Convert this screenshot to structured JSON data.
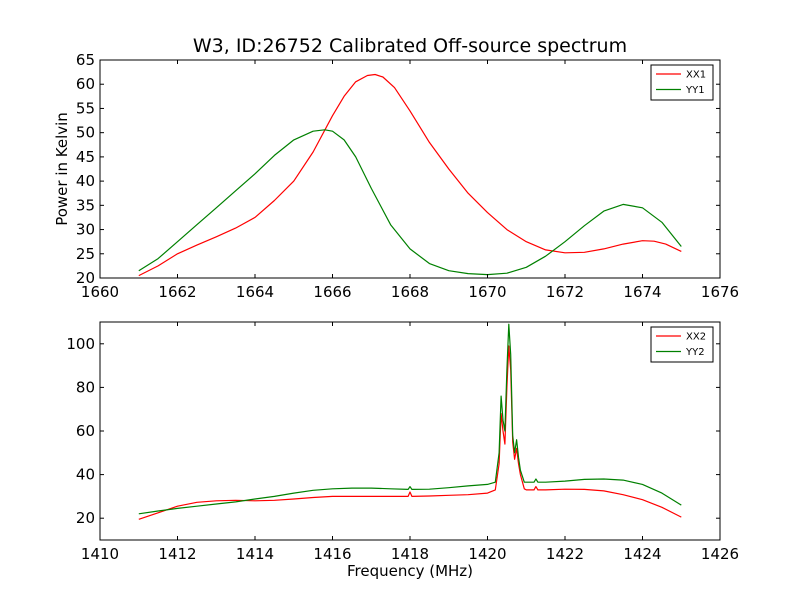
{
  "title": "W3, ID:26752 Calibrated Off-source spectrum",
  "colors": {
    "xx": "#ff0000",
    "yy": "#008000"
  },
  "chart_data": [
    {
      "type": "line",
      "title": "W3, ID:26752 Calibrated Off-source spectrum",
      "xlabel": "",
      "ylabel": "Power in Kelvin",
      "xlim": [
        1660,
        1676
      ],
      "ylim": [
        20,
        65
      ],
      "xticks": [
        1660,
        1662,
        1664,
        1666,
        1668,
        1670,
        1672,
        1674,
        1676
      ],
      "yticks": [
        20,
        25,
        30,
        35,
        40,
        45,
        50,
        55,
        60,
        65
      ],
      "grid": false,
      "legend": "top-right",
      "series": [
        {
          "name": "XX1",
          "color": "#ff0000",
          "x": [
            1661.0,
            1661.5,
            1662.0,
            1662.5,
            1663.0,
            1663.5,
            1664.0,
            1664.5,
            1665.0,
            1665.5,
            1666.0,
            1666.3,
            1666.6,
            1666.9,
            1667.1,
            1667.3,
            1667.6,
            1668.0,
            1668.5,
            1669.0,
            1669.5,
            1670.0,
            1670.5,
            1671.0,
            1671.5,
            1672.0,
            1672.5,
            1673.0,
            1673.5,
            1674.0,
            1674.3,
            1674.6,
            1675.0
          ],
          "y": [
            20.5,
            22.5,
            25.0,
            26.8,
            28.5,
            30.3,
            32.5,
            36.0,
            40.0,
            46.0,
            53.5,
            57.5,
            60.5,
            61.8,
            62.0,
            61.5,
            59.3,
            54.5,
            48.0,
            42.5,
            37.5,
            33.5,
            30.0,
            27.5,
            25.8,
            25.2,
            25.3,
            26.0,
            27.0,
            27.7,
            27.6,
            27.0,
            25.5
          ]
        },
        {
          "name": "YY1",
          "color": "#008000",
          "x": [
            1661.0,
            1661.5,
            1662.0,
            1662.5,
            1663.0,
            1663.5,
            1664.0,
            1664.5,
            1665.0,
            1665.5,
            1665.8,
            1666.0,
            1666.3,
            1666.6,
            1667.0,
            1667.5,
            1668.0,
            1668.5,
            1669.0,
            1669.5,
            1670.0,
            1670.5,
            1671.0,
            1671.5,
            1672.0,
            1672.5,
            1673.0,
            1673.5,
            1674.0,
            1674.5,
            1675.0
          ],
          "y": [
            21.5,
            24.0,
            27.5,
            31.0,
            34.5,
            38.0,
            41.5,
            45.3,
            48.5,
            50.3,
            50.6,
            50.3,
            48.5,
            45.0,
            38.5,
            31.0,
            26.0,
            23.0,
            21.5,
            20.9,
            20.7,
            21.0,
            22.2,
            24.5,
            27.5,
            30.8,
            33.8,
            35.2,
            34.5,
            31.5,
            26.5
          ]
        }
      ]
    },
    {
      "type": "line",
      "title": "",
      "xlabel": "Frequency (MHz)",
      "ylabel": "",
      "xlim": [
        1410,
        1426
      ],
      "ylim": [
        10,
        110
      ],
      "xticks": [
        1410,
        1412,
        1414,
        1416,
        1418,
        1420,
        1422,
        1424,
        1426
      ],
      "yticks": [
        20,
        40,
        60,
        80,
        100
      ],
      "grid": false,
      "legend": "top-right",
      "series": [
        {
          "name": "XX2",
          "color": "#ff0000",
          "x": [
            1411.0,
            1411.5,
            1412.0,
            1412.5,
            1413.0,
            1413.5,
            1414.0,
            1414.5,
            1415.0,
            1415.5,
            1416.0,
            1416.5,
            1417.0,
            1417.5,
            1417.95,
            1418.0,
            1418.05,
            1418.5,
            1419.0,
            1419.5,
            1420.0,
            1420.2,
            1420.3,
            1420.35,
            1420.4,
            1420.45,
            1420.5,
            1420.55,
            1420.6,
            1420.65,
            1420.7,
            1420.75,
            1420.8,
            1420.85,
            1420.95,
            1421.0,
            1421.1,
            1421.2,
            1421.25,
            1421.3,
            1421.4,
            1421.5,
            1422.0,
            1422.5,
            1423.0,
            1423.5,
            1424.0,
            1424.5,
            1425.0
          ],
          "y": [
            19.5,
            22.5,
            25.5,
            27.3,
            28.0,
            28.2,
            28.0,
            28.2,
            28.8,
            29.5,
            30.0,
            30.0,
            30.0,
            30.0,
            30.0,
            32.0,
            30.0,
            30.2,
            30.5,
            30.8,
            31.5,
            33.0,
            45.0,
            68.0,
            60.0,
            54.0,
            80.0,
            99.0,
            88.0,
            55.0,
            47.0,
            52.0,
            45.0,
            40.0,
            33.5,
            33.0,
            33.0,
            33.0,
            34.5,
            33.0,
            33.0,
            33.0,
            33.3,
            33.2,
            32.5,
            30.8,
            28.5,
            25.0,
            20.5
          ]
        },
        {
          "name": "YY2",
          "color": "#008000",
          "x": [
            1411.0,
            1411.5,
            1412.0,
            1412.5,
            1413.0,
            1413.5,
            1414.0,
            1414.5,
            1415.0,
            1415.5,
            1416.0,
            1416.5,
            1417.0,
            1417.5,
            1417.95,
            1418.0,
            1418.05,
            1418.5,
            1419.0,
            1419.5,
            1420.0,
            1420.2,
            1420.3,
            1420.35,
            1420.4,
            1420.45,
            1420.5,
            1420.55,
            1420.6,
            1420.65,
            1420.7,
            1420.75,
            1420.8,
            1420.85,
            1420.95,
            1421.0,
            1421.1,
            1421.2,
            1421.25,
            1421.3,
            1421.4,
            1421.5,
            1422.0,
            1422.5,
            1423.0,
            1423.5,
            1424.0,
            1424.5,
            1425.0
          ],
          "y": [
            22.0,
            23.3,
            24.5,
            25.5,
            26.5,
            27.5,
            28.8,
            30.0,
            31.5,
            32.8,
            33.5,
            33.8,
            33.8,
            33.5,
            33.2,
            34.5,
            33.2,
            33.3,
            34.0,
            34.8,
            35.5,
            36.5,
            50.0,
            76.0,
            65.0,
            60.0,
            88.0,
            109.0,
            95.0,
            58.0,
            50.0,
            56.0,
            48.0,
            42.0,
            36.5,
            36.5,
            36.5,
            36.5,
            38.0,
            36.5,
            36.5,
            36.5,
            37.0,
            37.8,
            38.0,
            37.5,
            35.5,
            31.5,
            26.0
          ]
        }
      ]
    }
  ]
}
